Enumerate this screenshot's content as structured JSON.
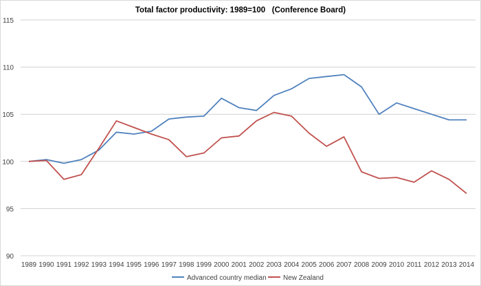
{
  "chart_data": {
    "type": "line",
    "title": "Total factor productivity: 1989=100   (Conference Board)",
    "xlabel": "",
    "ylabel": "",
    "ylim": [
      90,
      115
    ],
    "yticks": [
      90,
      95,
      100,
      105,
      110,
      115
    ],
    "grid": true,
    "legend_position": "bottom",
    "categories": [
      "1989",
      "1990",
      "1991",
      "1992",
      "1993",
      "1994",
      "1995",
      "1996",
      "1997",
      "1998",
      "1999",
      "2000",
      "2001",
      "2002",
      "2003",
      "2004",
      "2005",
      "2006",
      "2007",
      "2008",
      "2009",
      "2010",
      "2011",
      "2012",
      "2013",
      "2014"
    ],
    "series": [
      {
        "name": "Advanced country median",
        "color": "#4f81bd",
        "values": [
          100.0,
          100.2,
          99.8,
          100.2,
          101.2,
          103.1,
          102.9,
          103.2,
          104.5,
          104.7,
          104.8,
          106.7,
          105.7,
          105.4,
          107.0,
          107.7,
          108.8,
          109.0,
          109.2,
          107.9,
          105.0,
          106.2,
          105.6,
          105.0,
          104.4,
          104.4
        ]
      },
      {
        "name": "New Zealand",
        "color": "#c0504d",
        "values": [
          100.0,
          100.1,
          98.1,
          98.6,
          101.4,
          104.3,
          103.6,
          102.9,
          102.3,
          100.5,
          100.9,
          102.5,
          102.7,
          104.3,
          105.2,
          104.8,
          103.0,
          101.6,
          102.6,
          98.9,
          98.2,
          98.3,
          97.8,
          99.0,
          98.1,
          96.6
        ]
      }
    ]
  }
}
